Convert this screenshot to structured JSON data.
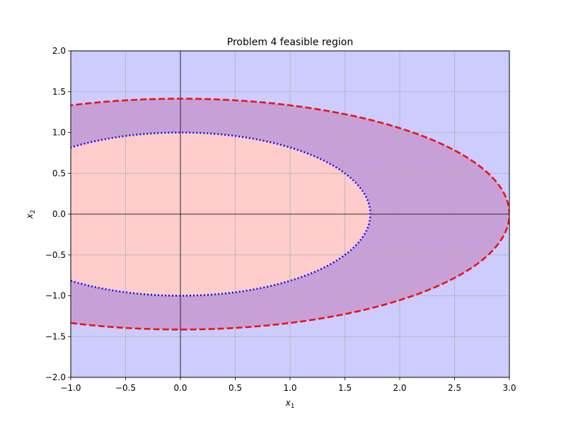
{
  "chart_data": {
    "type": "area",
    "title": "Problem 4 feasible region",
    "xlabel": {
      "base": "x",
      "sub": "1"
    },
    "ylabel": {
      "base": "x",
      "sub": "2"
    },
    "xlim": [
      -1.0,
      3.0
    ],
    "ylim": [
      -2.0,
      2.0
    ],
    "xticks": [
      -1.0,
      -0.5,
      0.0,
      0.5,
      1.0,
      1.5,
      2.0,
      2.5,
      3.0
    ],
    "yticks": [
      -2.0,
      -1.5,
      -1.0,
      -0.5,
      0.0,
      0.5,
      1.0,
      1.5,
      2.0
    ],
    "xtick_labels": [
      "−1.0",
      "−0.5",
      "0.0",
      "0.5",
      "1.0",
      "1.5",
      "2.0",
      "2.5",
      "3.0"
    ],
    "ytick_labels": [
      "−2.0",
      "−1.5",
      "−1.0",
      "−0.5",
      "0.0",
      "0.5",
      "1.0",
      "1.5",
      "2.0"
    ],
    "grid": true,
    "zero_lines": true,
    "background_color": "#ccccff",
    "regions": [
      {
        "color": "#c8a0d8",
        "boundary": {
          "a": 3.0,
          "b": 1.414
        }
      },
      {
        "color": "#ffcccc",
        "boundary": {
          "a": 1.732,
          "b": 1.0
        }
      }
    ],
    "series": [
      {
        "style": "dashed",
        "color": "#ee1111",
        "curve": "ellipse",
        "a": 3.0,
        "b": 1.414
      },
      {
        "style": "dotted",
        "color": "#1111ee",
        "curve": "ellipse",
        "a": 1.732,
        "b": 1.0
      }
    ]
  }
}
